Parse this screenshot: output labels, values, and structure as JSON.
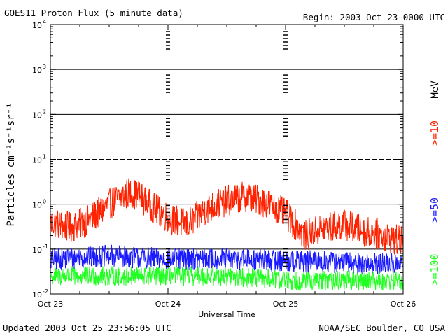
{
  "header": {
    "title": "GOES11 Proton Flux (5 minute data)",
    "begin": "Begin: 2003 Oct 23 0000 UTC"
  },
  "footer": {
    "updated": "Updated 2003 Oct 25 23:56:05 UTC",
    "credit": "NOAA/SEC Boulder, CO USA"
  },
  "chart_data": {
    "type": "line",
    "title": "GOES11 Proton Flux (5 minute data)",
    "xlabel": "Universal Time",
    "ylabel": "Particles cm⁻²s⁻¹sr⁻¹",
    "yscale": "log",
    "ylim": [
      0.01,
      10000
    ],
    "xlim": [
      "2003-10-23 00:00",
      "2003-10-26 00:00"
    ],
    "x_ticks": [
      "Oct 23",
      "Oct 24",
      "Oct 25",
      "Oct 26"
    ],
    "y_ticks": [
      {
        "base": "10",
        "exp": "-2",
        "value": 0.01
      },
      {
        "base": "10",
        "exp": "-1",
        "value": 0.1
      },
      {
        "base": "10",
        "exp": "0",
        "value": 1
      },
      {
        "base": "10",
        "exp": "1",
        "value": 10
      },
      {
        "base": "10",
        "exp": "2",
        "value": 100
      },
      {
        "base": "10",
        "exp": "3",
        "value": 1000
      },
      {
        "base": "10",
        "exp": "4",
        "value": 10000
      }
    ],
    "reference_lines": [
      {
        "value": 10,
        "style": "dashed"
      }
    ],
    "unit_label": "MeV",
    "series": [
      {
        "name": ">=10",
        "color": "#ff2200",
        "x": [
          "2003-10-23 00:00",
          "2003-10-23 04:00",
          "2003-10-23 08:00",
          "2003-10-23 12:00",
          "2003-10-23 16:00",
          "2003-10-23 18:00",
          "2003-10-23 20:00",
          "2003-10-24 00:00",
          "2003-10-24 04:00",
          "2003-10-24 08:00",
          "2003-10-24 12:00",
          "2003-10-24 16:00",
          "2003-10-24 20:00",
          "2003-10-25 00:00",
          "2003-10-25 04:00",
          "2003-10-25 08:00",
          "2003-10-25 12:00",
          "2003-10-25 16:00",
          "2003-10-25 20:00",
          "2003-10-26 00:00"
        ],
        "values": [
          0.4,
          0.3,
          0.45,
          1.0,
          1.8,
          1.6,
          1.0,
          0.5,
          0.35,
          0.8,
          1.2,
          1.5,
          1.1,
          0.6,
          0.2,
          0.3,
          0.35,
          0.25,
          0.2,
          0.14
        ]
      },
      {
        "name": ">=50",
        "color": "#1a1aff",
        "x": [
          "2003-10-23 00:00",
          "2003-10-23 12:00",
          "2003-10-24 00:00",
          "2003-10-24 12:00",
          "2003-10-25 00:00",
          "2003-10-25 12:00",
          "2003-10-26 00:00"
        ],
        "values": [
          0.06,
          0.07,
          0.06,
          0.06,
          0.055,
          0.05,
          0.045
        ]
      },
      {
        "name": ">=100",
        "color": "#22ff22",
        "x": [
          "2003-10-23 00:00",
          "2003-10-23 12:00",
          "2003-10-24 00:00",
          "2003-10-24 12:00",
          "2003-10-25 00:00",
          "2003-10-25 12:00",
          "2003-10-26 00:00"
        ],
        "values": [
          0.025,
          0.025,
          0.025,
          0.025,
          0.02,
          0.02,
          0.02
        ]
      }
    ]
  }
}
